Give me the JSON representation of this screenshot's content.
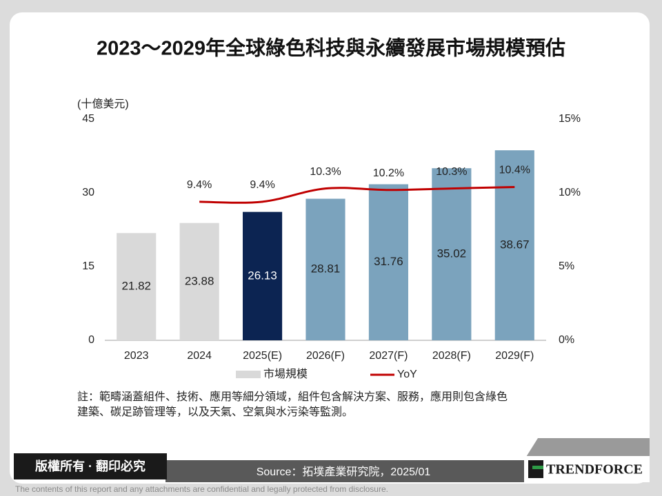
{
  "chart_data": {
    "type": "bar",
    "title": "2023～2029年全球綠色科技與永續發展市場規模預估",
    "y_axis_label": "(十億美元)",
    "categories": [
      "2023",
      "2024",
      "2025(E)",
      "2026(F)",
      "2027(F)",
      "2028(F)",
      "2029(F)"
    ],
    "series": [
      {
        "name": "市場規模",
        "values": [
          21.82,
          23.88,
          26.13,
          28.81,
          31.76,
          35.02,
          38.67
        ],
        "colors": [
          "#d9d9d9",
          "#d9d9d9",
          "#0c2452",
          "#7ba3bd",
          "#7ba3bd",
          "#7ba3bd",
          "#7ba3bd"
        ]
      },
      {
        "name": "YoY",
        "type": "line",
        "axis": "y2",
        "color": "#c00000",
        "values": [
          null,
          9.4,
          9.4,
          10.3,
          10.2,
          10.3,
          10.4
        ],
        "value_labels": [
          null,
          "9.4%",
          "9.4%",
          "10.3%",
          "10.2%",
          "10.3%",
          "10.4%"
        ]
      }
    ],
    "ylim": [
      0,
      45
    ],
    "yticks": [
      0,
      15,
      30,
      45
    ],
    "y2lim": [
      0,
      15
    ],
    "y2ticks": [
      {
        "value": 0,
        "label": "0%"
      },
      {
        "value": 5,
        "label": "5%"
      },
      {
        "value": 10,
        "label": "10%"
      },
      {
        "value": 15,
        "label": "15%"
      }
    ],
    "grid": false
  },
  "note": [
    "註：範疇涵蓋組件、技術、應用等細分領域，組件包含解決方案、服務，應用則包含綠色",
    "建築、碳足跡管理等，以及天氣、空氣與水污染等監測。"
  ],
  "footer": {
    "copyright": "版權所有 · 翻印必究",
    "source": "Source：拓墣產業研究院，2025/01",
    "logo": "TRENDFORCE",
    "disclaimer": "The contents of this report and any attachments are confidential and legally protected from disclosure."
  }
}
